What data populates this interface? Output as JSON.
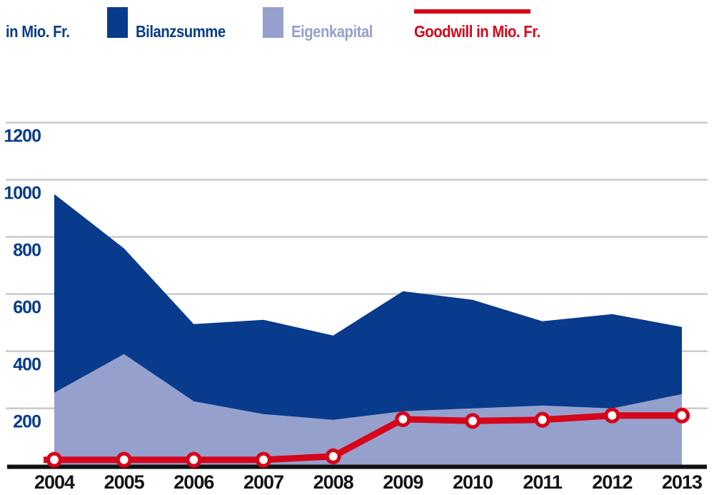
{
  "legend": {
    "unit_label": "in Mio. Fr.",
    "items": [
      {
        "label": "Bilanzsumme",
        "color": "#083b8c",
        "swatch": "rect"
      },
      {
        "label": "Eigenkapital",
        "color": "#96a0cd",
        "swatch": "rect"
      },
      {
        "label": "Goodwill in Mio. Fr.",
        "color": "#d60519",
        "swatch": "line"
      }
    ]
  },
  "chart_data": {
    "type": "area",
    "title": "",
    "xlabel": "",
    "ylabel": "in Mio. Fr.",
    "categories": [
      "2004",
      "2005",
      "2006",
      "2007",
      "2008",
      "2009",
      "2010",
      "2011",
      "2012",
      "2013"
    ],
    "series": [
      {
        "name": "Bilanzsumme",
        "type": "area",
        "color": "#083b8c",
        "values": [
          950,
          760,
          495,
          510,
          455,
          610,
          580,
          505,
          530,
          485
        ]
      },
      {
        "name": "Eigenkapital",
        "type": "area",
        "color": "#96a0cd",
        "values": [
          255,
          390,
          225,
          180,
          160,
          190,
          200,
          210,
          200,
          250
        ]
      },
      {
        "name": "Goodwill in Mio. Fr.",
        "type": "line",
        "color": "#d60519",
        "values": [
          20,
          20,
          20,
          20,
          32,
          162,
          156,
          160,
          175,
          175
        ]
      }
    ],
    "yticks": [
      200,
      400,
      600,
      800,
      1000,
      1200
    ],
    "ylim": [
      0,
      1240
    ],
    "grid": true,
    "legend_position": "top",
    "style": {
      "grid_color": "#c7c7c7",
      "axis_line_color": "#101010",
      "axis_label_color": "#083b8c",
      "x_label_color": "#141414",
      "marker_fill": "#ffffff",
      "background": "#ffffff"
    }
  }
}
